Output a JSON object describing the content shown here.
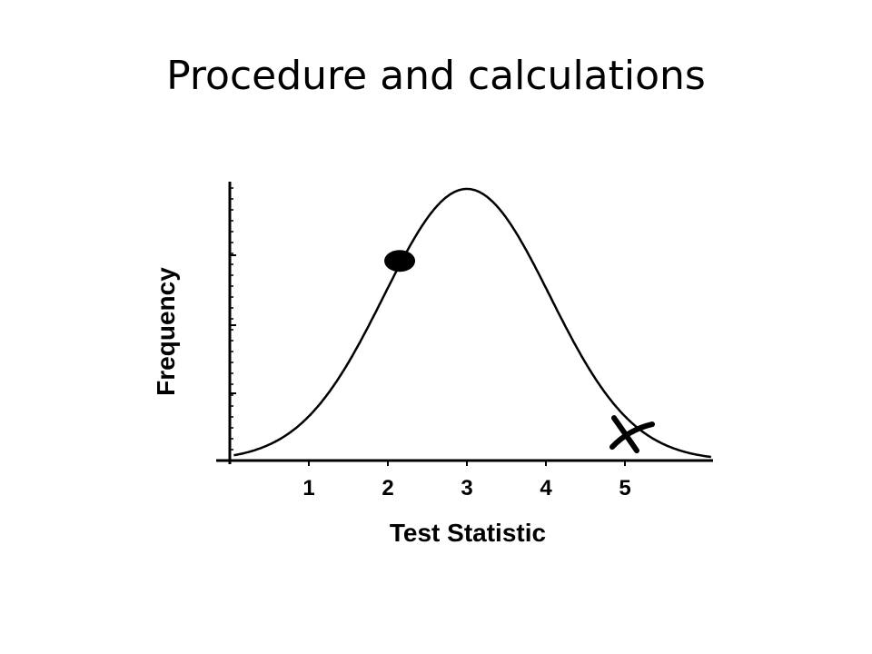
{
  "slide": {
    "title": "Procedure and calculations"
  },
  "chart_data": {
    "type": "line",
    "title": "",
    "xlabel": "Test Statistic",
    "ylabel": "Frequency",
    "x_ticks": [
      1,
      2,
      3,
      4,
      5
    ],
    "xlim": [
      0.05,
      6.1
    ],
    "ylim": [
      0,
      1
    ],
    "grid": false,
    "series": [
      {
        "curve": "normal",
        "mean": 3,
        "sd": 1.05,
        "peak": 1.0,
        "color": "#000000"
      }
    ],
    "annotations": [
      {
        "kind": "filled-dot",
        "x": 2.15,
        "y": 0.735,
        "color": "#000000"
      },
      {
        "kind": "x-mark",
        "x": 5.0,
        "y": 0.1,
        "color": "#000000"
      }
    ]
  }
}
